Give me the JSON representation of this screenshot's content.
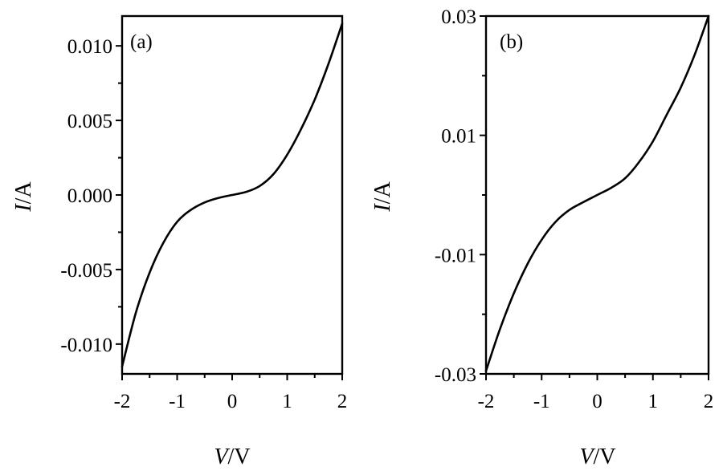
{
  "chart_data": [
    {
      "type": "line",
      "panel_label": "(a)",
      "xlabel_var": "V",
      "xlabel_unit": "/V",
      "ylabel_var": "I",
      "ylabel_unit": "/A",
      "xlim": [
        -2,
        2
      ],
      "ylim": [
        -0.012,
        0.012
      ],
      "x_ticks": [
        -2,
        -1,
        0,
        1,
        2
      ],
      "x_tick_labels": [
        "-2",
        "-1",
        "0",
        "1",
        "2"
      ],
      "y_ticks": [
        -0.01,
        -0.005,
        0,
        0.005,
        0.01
      ],
      "y_tick_labels": [
        "-0.010",
        "-0.005",
        "0.000",
        "0.005",
        "0.010"
      ],
      "grid": false,
      "series": [
        {
          "x": [
            -2.0,
            -1.75,
            -1.5,
            -1.25,
            -1.0,
            -0.75,
            -0.5,
            -0.25,
            0.0,
            0.25,
            0.5,
            0.75,
            1.0,
            1.25,
            1.5,
            1.75,
            2.0
          ],
          "y": [
            -0.0115,
            -0.0079,
            -0.0052,
            -0.0032,
            -0.0018,
            -0.001,
            -0.0005,
            -0.0002,
            0.0,
            0.0002,
            0.0006,
            0.0014,
            0.0027,
            0.0044,
            0.0064,
            0.0088,
            0.0115
          ]
        }
      ]
    },
    {
      "type": "line",
      "panel_label": "(b)",
      "xlabel_var": "V",
      "xlabel_unit": "/V",
      "ylabel_var": "I",
      "ylabel_unit": "/A",
      "xlim": [
        -2,
        2
      ],
      "ylim": [
        -0.03,
        0.03
      ],
      "x_ticks": [
        -2,
        -1,
        0,
        1,
        2
      ],
      "x_tick_labels": [
        "-2",
        "-1",
        "0",
        "1",
        "2"
      ],
      "y_ticks": [
        -0.03,
        -0.01,
        0.01,
        0.03
      ],
      "y_tick_labels": [
        "-0.03",
        "-0.01",
        "0.01",
        "0.03"
      ],
      "grid": false,
      "series": [
        {
          "x": [
            -2.0,
            -1.75,
            -1.5,
            -1.25,
            -1.0,
            -0.75,
            -0.5,
            -0.25,
            0.0,
            0.25,
            0.5,
            0.75,
            1.0,
            1.25,
            1.5,
            1.75,
            2.0
          ],
          "y": [
            -0.0295,
            -0.0225,
            -0.0165,
            -0.0115,
            -0.0075,
            -0.0045,
            -0.0025,
            -0.0012,
            0.0,
            0.0012,
            0.0028,
            0.0055,
            0.009,
            0.0135,
            0.018,
            0.0235,
            0.03
          ]
        }
      ]
    }
  ]
}
